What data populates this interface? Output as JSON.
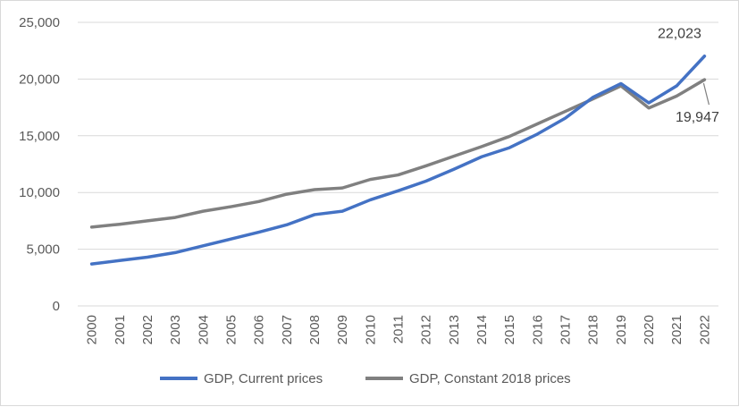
{
  "chart_data": {
    "type": "line",
    "title": "",
    "xlabel": "",
    "ylabel": "",
    "categories": [
      "2000",
      "2001",
      "2002",
      "2003",
      "2004",
      "2005",
      "2006",
      "2007",
      "2008",
      "2009",
      "2010",
      "2011",
      "2012",
      "2013",
      "2014",
      "2015",
      "2016",
      "2017",
      "2018",
      "2019",
      "2020",
      "2021",
      "2022"
    ],
    "ylim": [
      0,
      25000
    ],
    "yticks": [
      0,
      5000,
      10000,
      15000,
      20000,
      25000
    ],
    "ytick_labels": [
      "0",
      "5,000",
      "10,000",
      "15,000",
      "20,000",
      "25,000"
    ],
    "grid": "horizontal",
    "legend_position": "bottom",
    "series": [
      {
        "name": "GDP, Current prices",
        "color": "#4472C4",
        "values": [
          3700,
          4000,
          4300,
          4700,
          5300,
          5900,
          6500,
          7150,
          8050,
          8350,
          9350,
          10150,
          11000,
          12050,
          13150,
          13950,
          15150,
          16550,
          18400,
          19600,
          17900,
          19400,
          22023
        ]
      },
      {
        "name": "GDP, Constant 2018 prices",
        "color": "#808080",
        "values": [
          6950,
          7200,
          7500,
          7800,
          8350,
          8750,
          9200,
          9850,
          10250,
          10400,
          11150,
          11550,
          12350,
          13200,
          14050,
          14950,
          16050,
          17150,
          18250,
          19400,
          17450,
          18500,
          19947
        ]
      }
    ],
    "annotations": [
      {
        "series": 0,
        "x": "2022",
        "text": "22,023"
      },
      {
        "series": 1,
        "x": "2022",
        "text": "19,947"
      }
    ]
  }
}
